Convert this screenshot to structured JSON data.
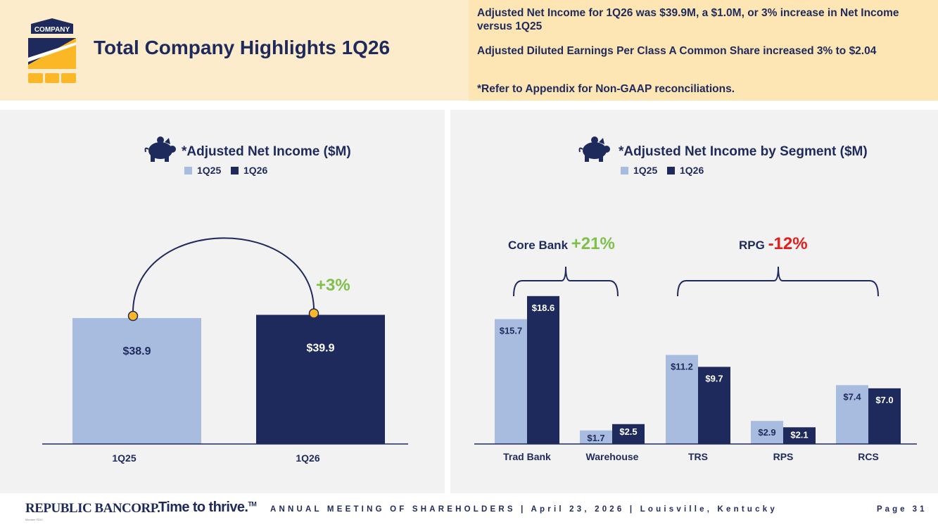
{
  "header": {
    "logo_text": "COMPANY",
    "title": "Total Company Highlights 1Q26",
    "highlights": [
      "Adjusted Net Income for 1Q26 was $39.9M, a $1.0M, or 3% increase in Net Income versus 1Q25",
      "Adjusted Diluted Earnings Per Class A Common Share increased 3% to $2.04",
      "*Refer to Appendix for Non-GAAP reconciliations."
    ]
  },
  "colors": {
    "light_bar": "#a8bce0",
    "dark_bar": "#1f2a5c",
    "green": "#7ec04b",
    "red": "#e31c1c",
    "gold": "#fbb726"
  },
  "icons": [
    "piggy-bank-icon",
    "company-logo-icon"
  ],
  "chart_data": [
    {
      "type": "bar",
      "title": "*Adjusted Net Income ($M)",
      "categories": [
        "1Q25",
        "1Q26"
      ],
      "values": [
        38.9,
        39.9
      ],
      "labels": [
        "$38.9",
        "$39.9"
      ],
      "legend": [
        "1Q25",
        "1Q26"
      ],
      "legend_placement": "top",
      "annotation": "+3%",
      "grid": false
    },
    {
      "type": "bar",
      "title": "*Adjusted Net Income by Segment ($M)",
      "categories": [
        "Trad Bank",
        "Warehouse",
        "TRS",
        "RPS",
        "RCS"
      ],
      "series": [
        {
          "name": "1Q25",
          "values": [
            15.7,
            1.7,
            11.2,
            2.9,
            7.4
          ],
          "labels": [
            "$15.7",
            "$1.7",
            "$11.2",
            "$2.9",
            "$7.4"
          ]
        },
        {
          "name": "1Q26",
          "values": [
            18.6,
            2.5,
            9.7,
            2.1,
            7.0
          ],
          "labels": [
            "$18.6",
            "$2.5",
            "$9.7",
            "$2.1",
            "$7.0"
          ]
        }
      ],
      "legend_placement": "top",
      "groups": [
        {
          "label": "Core Bank",
          "change": "+21%"
        },
        {
          "label": "RPG",
          "change": "-12%"
        }
      ],
      "grid": false
    }
  ],
  "footer": {
    "brand": "REPUBLIC BANCORP.",
    "brand_sub": "Member FDIC",
    "tagline": "Time to thrive.",
    "tagline_mark": "TM",
    "meeting": "ANNUAL MEETING OF SHAREHOLDERS | April 23, 2026 | Louisville, Kentucky",
    "page": "Page 31"
  }
}
